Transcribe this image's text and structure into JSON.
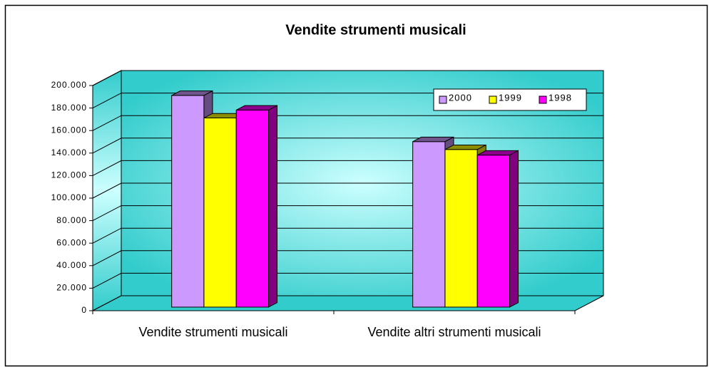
{
  "chart_data": {
    "type": "bar3d",
    "title": "Vendite strumenti musicali",
    "categories": [
      "Vendite strumenti musicali",
      "Vendite altri strumenti musicali"
    ],
    "series": [
      {
        "name": "2000",
        "color": "#cc99ff",
        "values": [
          188000,
          147000
        ]
      },
      {
        "name": "1999",
        "color": "#ffff00",
        "values": [
          168000,
          140000
        ]
      },
      {
        "name": "1998",
        "color": "#ff00ff",
        "values": [
          175000,
          135000
        ]
      }
    ],
    "ylim": [
      0,
      200000
    ],
    "yticks": [
      0,
      {
        "value": 20000,
        "label": "20.000"
      },
      {
        "value": 40000,
        "label": "40.000"
      },
      {
        "value": 60000,
        "label": "60.000"
      },
      {
        "value": 80000,
        "label": "80.000"
      },
      {
        "value": 100000,
        "label": "100.000"
      },
      {
        "value": 120000,
        "label": "120.000"
      },
      {
        "value": 140000,
        "label": "140.000"
      },
      {
        "value": 160000,
        "label": "160.000"
      },
      {
        "value": 180000,
        "label": "180.000"
      },
      {
        "value": 200000,
        "label": "200.000"
      }
    ],
    "grid": true,
    "legend": "top-right"
  }
}
